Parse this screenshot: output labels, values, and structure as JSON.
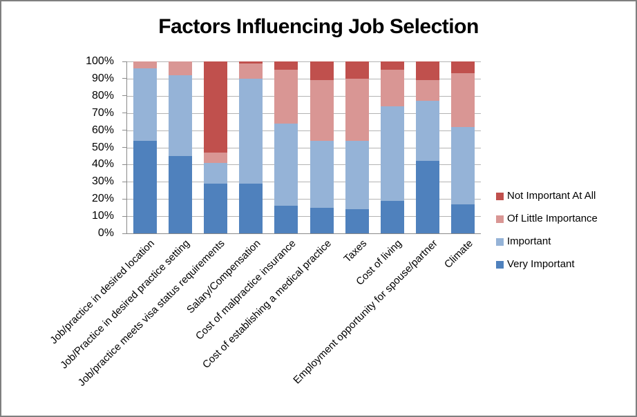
{
  "frame": {
    "background_color": "#ffffff",
    "border_color": "#7f7f7f"
  },
  "chart_data": {
    "type": "bar",
    "subtype": "stacked-100-percent-column",
    "title": "Factors Influencing Job Selection",
    "categories": [
      "Job/practice in desired location",
      "Job/Practice in desired practice setting",
      "Job/practice meets visa status requirements",
      "Salary/Compensation",
      "Cost of malpractice insurance",
      "Cost of establishing a medical practice",
      "Taxes",
      "Cost of living",
      "Employment opportunity for spouse/partner",
      "Climate"
    ],
    "series": [
      {
        "name": "Very Important",
        "color": "#4f81bd",
        "values": [
          54,
          45,
          29,
          29,
          16,
          15,
          14,
          19,
          42,
          17
        ]
      },
      {
        "name": "Important",
        "color": "#95b3d7",
        "values": [
          42,
          47,
          12,
          61,
          48,
          39,
          40,
          55,
          35,
          45
        ]
      },
      {
        "name": "Of Little Importance",
        "color": "#d99694",
        "values": [
          4,
          8,
          6,
          9,
          31,
          35,
          36,
          21,
          12,
          31
        ]
      },
      {
        "name": "Not Important At All",
        "color": "#c0504d",
        "values": [
          0,
          0,
          53,
          1,
          5,
          11,
          10,
          5,
          11,
          7
        ]
      }
    ],
    "stack_order_bottom_to_top": [
      "Very Important",
      "Important",
      "Of Little Importance",
      "Not Important At All"
    ],
    "y_axis": {
      "min": 0,
      "max": 100,
      "step": 10,
      "tick_labels_top_to_bottom": [
        "100%",
        "90%",
        "80%",
        "70%",
        "60%",
        "50%",
        "40%",
        "30%",
        "20%",
        "10%",
        "0%"
      ],
      "grid": true
    },
    "x_axis": {
      "label_rotation_degrees": -45
    },
    "legend": {
      "position": "right",
      "items_top_to_bottom": [
        "Not Important At All",
        "Of Little Importance",
        "Important",
        "Very Important"
      ]
    },
    "style": {
      "grid_color": "#b3b3b3",
      "axis_color": "#898989",
      "text_color": "#000000"
    }
  }
}
